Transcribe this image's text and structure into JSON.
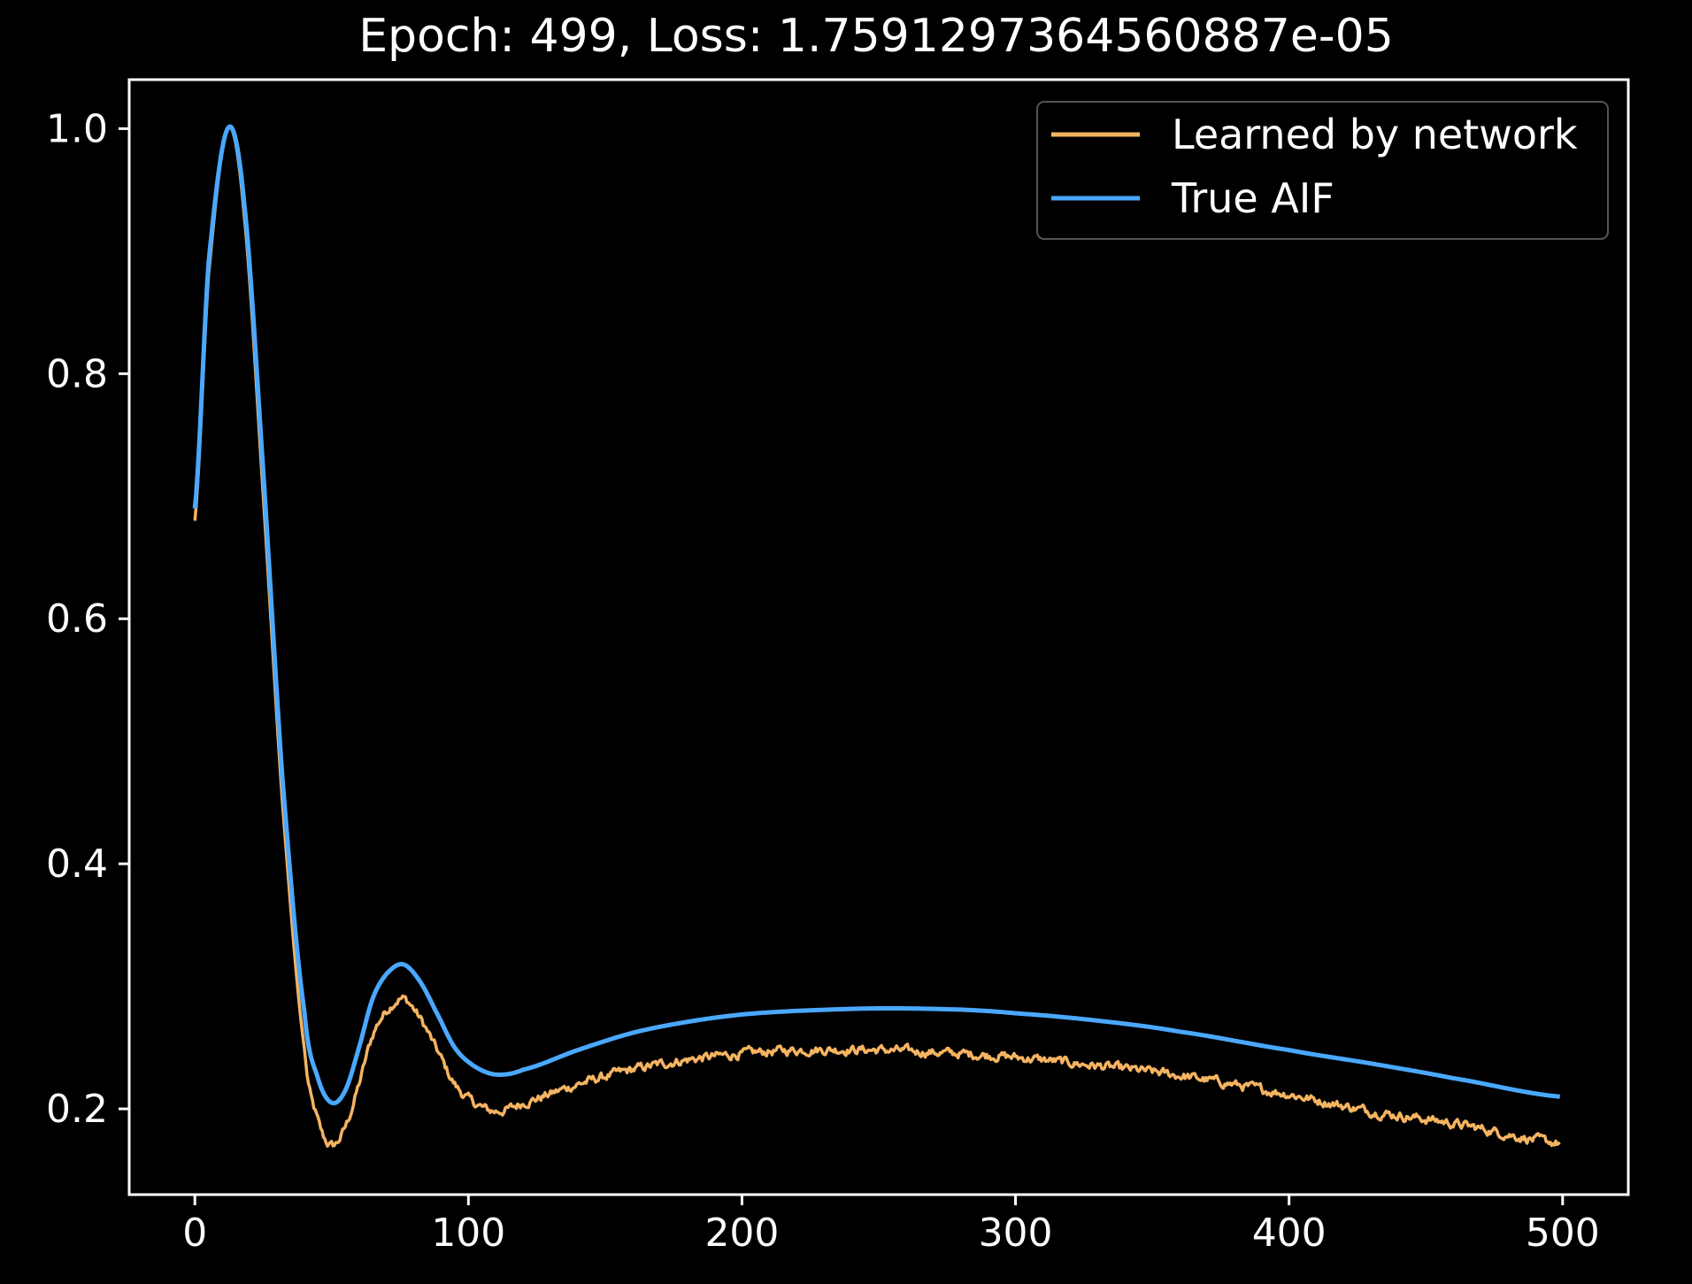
{
  "chart_data": {
    "type": "line",
    "title": "Epoch: 499, Loss: 1.7591297364560887e-05",
    "xlabel": "",
    "ylabel": "",
    "xlim": [
      -24,
      524
    ],
    "ylim": [
      0.13,
      1.04
    ],
    "xticks": [
      0,
      100,
      200,
      300,
      400,
      500
    ],
    "xtick_labels": [
      "0",
      "100",
      "200",
      "300",
      "400",
      "500"
    ],
    "yticks": [
      0.2,
      0.4,
      0.6,
      0.8,
      1.0
    ],
    "ytick_labels": [
      "0.2",
      "0.4",
      "0.6",
      "0.8",
      "1.0"
    ],
    "grid": false,
    "legend_position": "top-right",
    "background": "#000000",
    "foreground": "#ffffff",
    "x": [
      0,
      5,
      12,
      18,
      25,
      32,
      40,
      45,
      50,
      55,
      60,
      65,
      70,
      76,
      82,
      88,
      95,
      102,
      110,
      120,
      140,
      160,
      180,
      200,
      220,
      250,
      280,
      300,
      330,
      360,
      400,
      430,
      460,
      499
    ],
    "series": [
      {
        "name": "Learned by network",
        "color": "#f5b461",
        "noisy": true,
        "values": [
          0.68,
          0.88,
          1.0,
          0.93,
          0.7,
          0.45,
          0.25,
          0.19,
          0.17,
          0.185,
          0.22,
          0.26,
          0.28,
          0.29,
          0.275,
          0.25,
          0.22,
          0.205,
          0.198,
          0.205,
          0.22,
          0.232,
          0.24,
          0.245,
          0.248,
          0.248,
          0.245,
          0.242,
          0.235,
          0.227,
          0.212,
          0.198,
          0.188,
          0.172
        ]
      },
      {
        "name": "True AIF",
        "color": "#4aa8ff",
        "noisy": false,
        "values": [
          0.69,
          0.89,
          1.0,
          0.94,
          0.72,
          0.47,
          0.28,
          0.225,
          0.205,
          0.215,
          0.25,
          0.29,
          0.31,
          0.318,
          0.305,
          0.28,
          0.25,
          0.235,
          0.228,
          0.232,
          0.248,
          0.262,
          0.271,
          0.277,
          0.28,
          0.282,
          0.281,
          0.278,
          0.272,
          0.263,
          0.248,
          0.237,
          0.225,
          0.21
        ]
      }
    ]
  }
}
